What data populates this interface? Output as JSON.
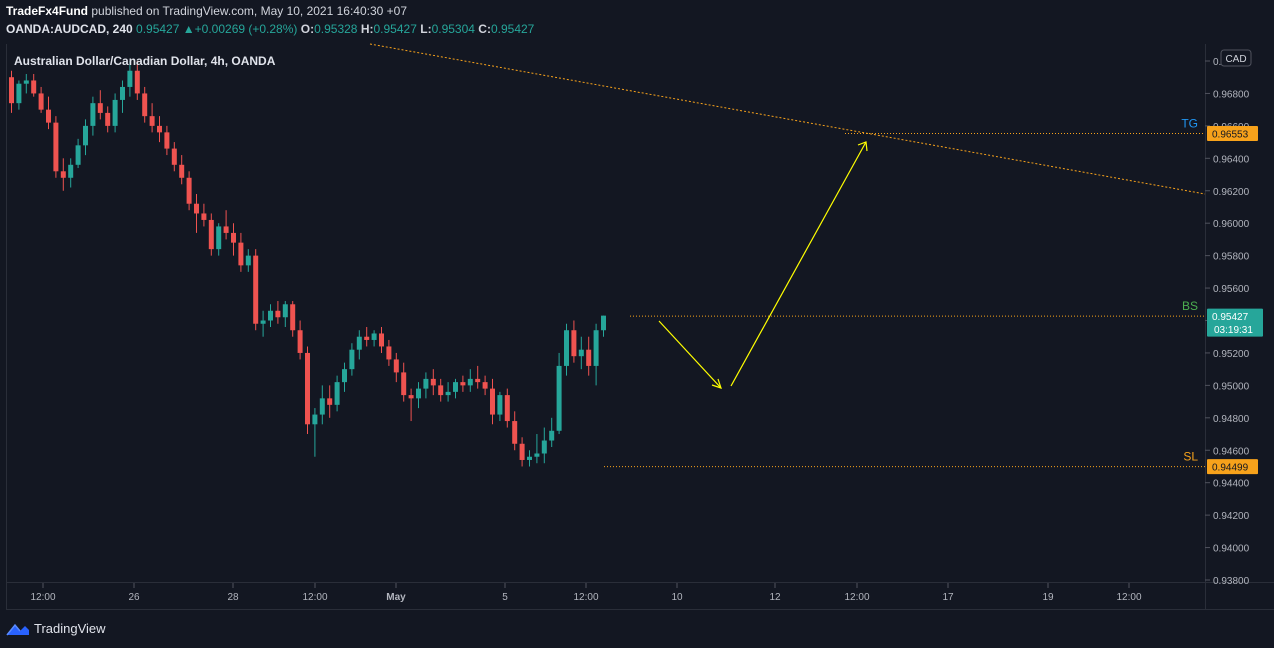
{
  "publish_line": {
    "author": "TradeFx4Fund",
    "text": " published on TradingView.com, May 10, 2021 16:40:30 +07"
  },
  "symbol_line": {
    "symbol": "OANDA:AUDCAD, 240",
    "last": "0.95427",
    "change_arrow": "▲",
    "change": "+0.00269 (+0.28%)",
    "o_label": "O:",
    "o_value": "0.95328",
    "h_label": "H:",
    "h_value": "0.95427",
    "l_label": "L:",
    "l_value": "0.95304",
    "c_label": "C:",
    "c_value": "0.95427"
  },
  "pane_title": "Australian Dollar/Canadian Dollar, 4h, OANDA",
  "footer": {
    "brand": "TradingView",
    "icon": "tradingview-logo-icon"
  },
  "colors": {
    "background": "#131722",
    "up": "#26a69a",
    "down": "#ef5350",
    "level_line": "#f7a21b",
    "arrow": "#ffff00",
    "tg_label": "#2196f3",
    "bs_label": "#4caf50",
    "sl_label": "#f7a21b",
    "current_price_tag": "#26a69a"
  },
  "chart_data": {
    "type": "candlestick",
    "title": "Australian Dollar/Canadian Dollar, 4h, OANDA",
    "currency": "CAD",
    "ylim": [
      0.938,
      0.97
    ],
    "y_ticks": [
      "0.97000",
      "0.96800",
      "0.96600",
      "0.96400",
      "0.96200",
      "0.96000",
      "0.95800",
      "0.95600",
      "0.95400",
      "0.95200",
      "0.95000",
      "0.94800",
      "0.94600",
      "0.94400",
      "0.94200",
      "0.94000",
      "0.93800"
    ],
    "x_ticks": [
      "12:00",
      "26",
      "28",
      "12:00",
      "May",
      "5",
      "12:00",
      "10",
      "12",
      "12:00",
      "17",
      "19",
      "12:00"
    ],
    "candles": [
      [
        0.969,
        0.9694,
        0.9668,
        0.9674
      ],
      [
        0.9674,
        0.9688,
        0.967,
        0.9686
      ],
      [
        0.9686,
        0.9692,
        0.968,
        0.9688
      ],
      [
        0.9688,
        0.9692,
        0.9678,
        0.968
      ],
      [
        0.968,
        0.9684,
        0.9668,
        0.967
      ],
      [
        0.967,
        0.9678,
        0.9658,
        0.9662
      ],
      [
        0.9662,
        0.9666,
        0.9628,
        0.9632
      ],
      [
        0.9632,
        0.964,
        0.962,
        0.9628
      ],
      [
        0.9628,
        0.964,
        0.9622,
        0.9636
      ],
      [
        0.9636,
        0.9652,
        0.9634,
        0.9648
      ],
      [
        0.9648,
        0.9664,
        0.9642,
        0.966
      ],
      [
        0.966,
        0.9678,
        0.9654,
        0.9674
      ],
      [
        0.9674,
        0.9682,
        0.9664,
        0.9668
      ],
      [
        0.9668,
        0.9672,
        0.9656,
        0.966
      ],
      [
        0.966,
        0.968,
        0.9656,
        0.9676
      ],
      [
        0.9676,
        0.9688,
        0.9668,
        0.9684
      ],
      [
        0.9684,
        0.97,
        0.9678,
        0.9694
      ],
      [
        0.9694,
        0.97,
        0.9676,
        0.968
      ],
      [
        0.968,
        0.9684,
        0.9662,
        0.9666
      ],
      [
        0.9666,
        0.9674,
        0.9656,
        0.966
      ],
      [
        0.966,
        0.9666,
        0.965,
        0.9656
      ],
      [
        0.9656,
        0.966,
        0.9642,
        0.9646
      ],
      [
        0.9646,
        0.965,
        0.9632,
        0.9636
      ],
      [
        0.9636,
        0.9642,
        0.9624,
        0.9628
      ],
      [
        0.9628,
        0.9632,
        0.9608,
        0.9612
      ],
      [
        0.9612,
        0.9618,
        0.9594,
        0.9606
      ],
      [
        0.9606,
        0.9612,
        0.9598,
        0.9602
      ],
      [
        0.9602,
        0.9606,
        0.958,
        0.9584
      ],
      [
        0.9584,
        0.96,
        0.958,
        0.9598
      ],
      [
        0.9598,
        0.9608,
        0.959,
        0.9594
      ],
      [
        0.9594,
        0.96,
        0.958,
        0.9588
      ],
      [
        0.9588,
        0.9594,
        0.957,
        0.9574
      ],
      [
        0.9574,
        0.9584,
        0.957,
        0.958
      ],
      [
        0.958,
        0.9584,
        0.9534,
        0.9538
      ],
      [
        0.9538,
        0.9546,
        0.953,
        0.954
      ],
      [
        0.954,
        0.955,
        0.9536,
        0.9546
      ],
      [
        0.9546,
        0.9552,
        0.9538,
        0.9542
      ],
      [
        0.9542,
        0.9552,
        0.9536,
        0.955
      ],
      [
        0.955,
        0.9552,
        0.953,
        0.9534
      ],
      [
        0.9534,
        0.954,
        0.9516,
        0.952
      ],
      [
        0.952,
        0.9524,
        0.947,
        0.9476
      ],
      [
        0.9476,
        0.9486,
        0.9456,
        0.9482
      ],
      [
        0.9482,
        0.95,
        0.9476,
        0.9492
      ],
      [
        0.9492,
        0.95,
        0.948,
        0.9488
      ],
      [
        0.9488,
        0.9506,
        0.9484,
        0.9502
      ],
      [
        0.9502,
        0.9514,
        0.9496,
        0.951
      ],
      [
        0.951,
        0.9526,
        0.9506,
        0.9522
      ],
      [
        0.9522,
        0.9534,
        0.9516,
        0.953
      ],
      [
        0.953,
        0.9536,
        0.9524,
        0.9528
      ],
      [
        0.9528,
        0.9534,
        0.9524,
        0.9532
      ],
      [
        0.9532,
        0.9536,
        0.952,
        0.9524
      ],
      [
        0.9524,
        0.9528,
        0.9512,
        0.9516
      ],
      [
        0.9516,
        0.952,
        0.9502,
        0.9508
      ],
      [
        0.9508,
        0.9514,
        0.949,
        0.9494
      ],
      [
        0.9494,
        0.9498,
        0.9478,
        0.9492
      ],
      [
        0.9492,
        0.9502,
        0.9486,
        0.9498
      ],
      [
        0.9498,
        0.9508,
        0.9492,
        0.9504
      ],
      [
        0.9504,
        0.951,
        0.9494,
        0.95
      ],
      [
        0.95,
        0.9504,
        0.949,
        0.9494
      ],
      [
        0.9494,
        0.9502,
        0.949,
        0.9496
      ],
      [
        0.9496,
        0.9504,
        0.9492,
        0.9502
      ],
      [
        0.9502,
        0.9506,
        0.9496,
        0.95
      ],
      [
        0.95,
        0.951,
        0.9496,
        0.9504
      ],
      [
        0.9504,
        0.9512,
        0.9498,
        0.9502
      ],
      [
        0.9502,
        0.9506,
        0.9494,
        0.9498
      ],
      [
        0.9498,
        0.9504,
        0.9476,
        0.9482
      ],
      [
        0.9482,
        0.9496,
        0.9478,
        0.9494
      ],
      [
        0.9494,
        0.9498,
        0.9474,
        0.9478
      ],
      [
        0.9478,
        0.9484,
        0.946,
        0.9464
      ],
      [
        0.9464,
        0.9468,
        0.945,
        0.9454
      ],
      [
        0.9454,
        0.946,
        0.945,
        0.9456
      ],
      [
        0.9456,
        0.947,
        0.9452,
        0.9458
      ],
      [
        0.9458,
        0.9474,
        0.9452,
        0.9466
      ],
      [
        0.9466,
        0.948,
        0.9462,
        0.9472
      ],
      [
        0.9472,
        0.952,
        0.947,
        0.9512
      ],
      [
        0.9512,
        0.9538,
        0.9506,
        0.9534
      ],
      [
        0.9534,
        0.954,
        0.9514,
        0.9518
      ],
      [
        0.9518,
        0.953,
        0.951,
        0.9522
      ],
      [
        0.9522,
        0.953,
        0.9506,
        0.9512
      ],
      [
        0.9512,
        0.9538,
        0.95,
        0.9534
      ],
      [
        0.9534,
        0.9543,
        0.953,
        0.9543
      ]
    ],
    "annotations": {
      "tg": {
        "label": "TG",
        "price": "0.96553",
        "value": 0.96553
      },
      "bs": {
        "label": "BS",
        "price": "0.95427",
        "value": 0.95427,
        "countdown": "03:19:31"
      },
      "entry": {
        "price": "0.95416",
        "value": 0.95416
      },
      "sl": {
        "label": "SL",
        "price": "0.94499",
        "value": 0.94499
      }
    },
    "grid": false,
    "legend": "none"
  }
}
